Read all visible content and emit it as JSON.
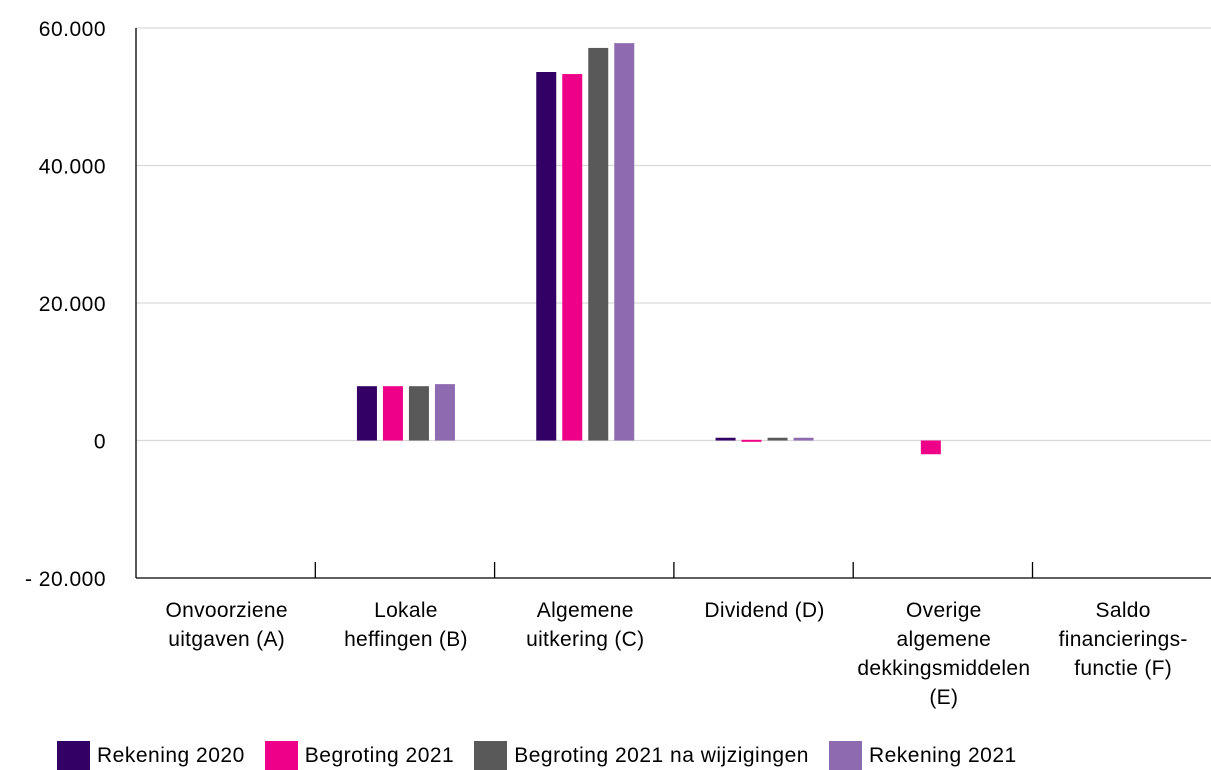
{
  "chart_data": {
    "type": "bar",
    "title": "",
    "xlabel": "",
    "ylabel": "",
    "ylim": [
      -20000,
      60000
    ],
    "yticks": [
      -20000,
      0,
      20000,
      40000,
      60000
    ],
    "ytick_labels": [
      "- 20.000",
      "0",
      "20.000",
      "40.000",
      "60.000"
    ],
    "grid": "horizontal",
    "legend_position": "bottom",
    "categories": [
      [
        "Onvoorziene",
        "uitgaven (A)"
      ],
      [
        "Lokale",
        "heffingen (B)"
      ],
      [
        "Algemene",
        "uitkering (C)"
      ],
      [
        "Dividend (D)"
      ],
      [
        "Overige",
        "algemene",
        "dekkingsmiddelen",
        "(E)"
      ],
      [
        "Saldo",
        "financierings-",
        "functie (F)"
      ]
    ],
    "series": [
      {
        "name": "Rekening 2020",
        "color": "#330066",
        "values": [
          0,
          7900,
          53600,
          400,
          0,
          0
        ]
      },
      {
        "name": "Begroting 2021",
        "color": "#ee0088",
        "values": [
          0,
          7900,
          53300,
          100,
          -2000,
          0
        ]
      },
      {
        "name": "Begroting 2021 na wijzigingen",
        "color": "#595959",
        "values": [
          0,
          7900,
          57100,
          400,
          0,
          0
        ]
      },
      {
        "name": "Rekening 2021",
        "color": "#8e6bb0",
        "values": [
          0,
          8200,
          57800,
          400,
          0,
          0
        ]
      }
    ]
  }
}
